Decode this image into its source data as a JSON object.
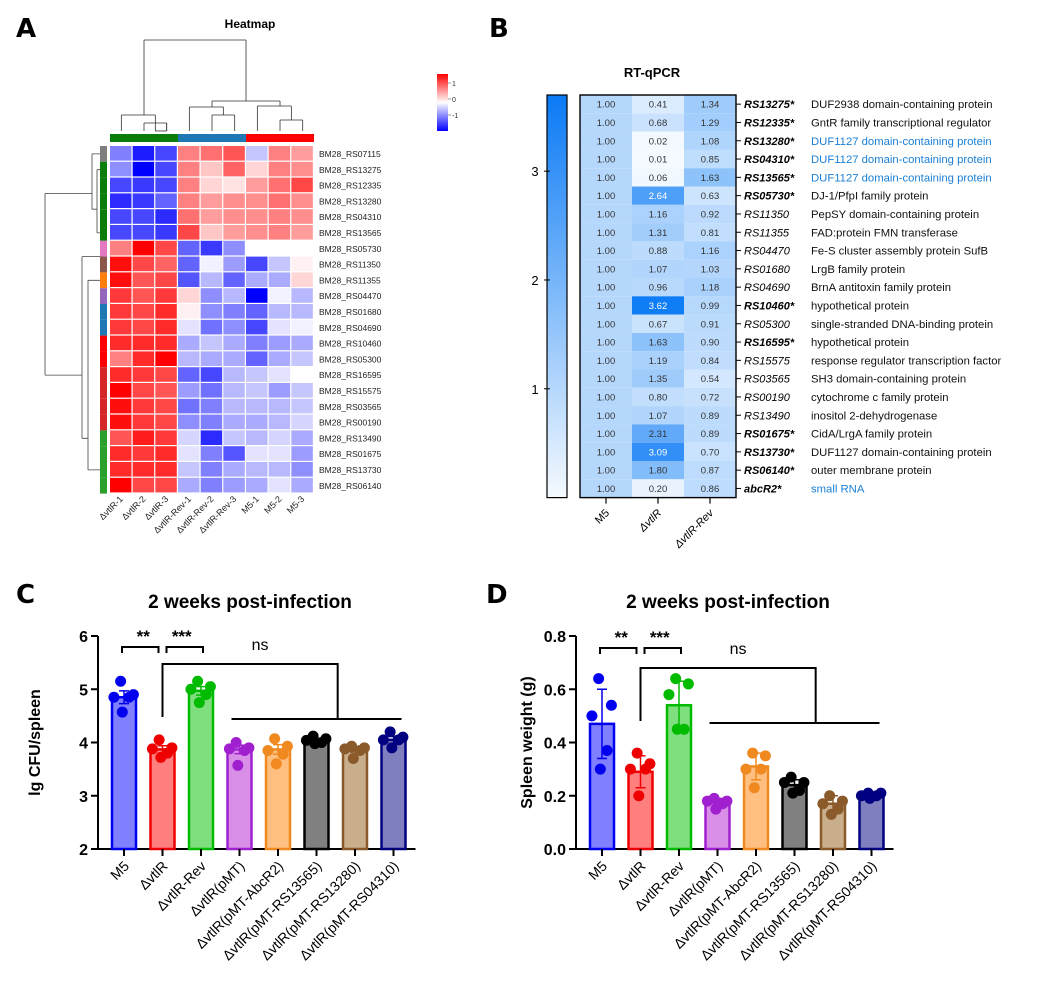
{
  "panels": {
    "a": "A",
    "b": "B",
    "c": "C",
    "d": "D"
  },
  "chart_data": [
    {
      "panel": "A",
      "type": "heatmap",
      "title": "Heatmap",
      "columns": [
        "ΔvtlR-1",
        "ΔvtlR-2",
        "ΔvtlR-3",
        "ΔvtlR-Rev-1",
        "ΔvtlR-Rev-2",
        "ΔvtlR-Rev-3",
        "M5-1",
        "M5-2",
        "M5-3"
      ],
      "column_groups": [
        {
          "name": "ΔvtlR",
          "color": "#0b7d0b",
          "count": 3
        },
        {
          "name": "ΔvtlR-Rev",
          "color": "#1f77b4",
          "count": 3
        },
        {
          "name": "M5",
          "color": "#ff0000",
          "count": 3
        }
      ],
      "rows": [
        "BM28_RS07115",
        "BM28_RS13275",
        "BM28_RS12335",
        "BM28_RS13280",
        "BM28_RS04310",
        "BM28_RS13565",
        "BM28_RS05730",
        "BM28_RS11350",
        "BM28_RS11355",
        "BM28_RS04470",
        "BM28_RS01680",
        "BM28_RS04690",
        "BM28_RS10460",
        "BM28_RS05300",
        "BM28_RS16595",
        "BM28_RS15575",
        "BM28_RS03565",
        "BM28_RS00190",
        "BM28_RS13490",
        "BM28_RS01675",
        "BM28_RS13730",
        "BM28_RS06140"
      ],
      "row_cluster_colors": [
        "#7f7f7f",
        "#0b7d0b",
        "#0b7d0b",
        "#0b7d0b",
        "#0b7d0b",
        "#0b7d0b",
        "#e377c2",
        "#8c564b",
        "#ff7f0e",
        "#9467bd",
        "#1f77b4",
        "#1f77b4",
        "#ff0000",
        "#ff0000",
        "#d62728",
        "#d62728",
        "#d62728",
        "#d62728",
        "#2ca02c",
        "#2ca02c",
        "#2ca02c",
        "#2ca02c"
      ],
      "values": [
        [
          -0.9,
          -1.6,
          -1.3,
          0.9,
          1.0,
          1.2,
          -0.4,
          0.9,
          0.7
        ],
        [
          -0.8,
          -1.8,
          -1.3,
          0.9,
          0.4,
          1.1,
          0.3,
          0.9,
          0.8
        ],
        [
          -1.3,
          -1.4,
          -1.3,
          0.9,
          0.3,
          0.2,
          0.7,
          1.0,
          1.3
        ],
        [
          -1.5,
          -1.4,
          -1.1,
          0.9,
          0.7,
          0.8,
          0.8,
          1.0,
          0.8
        ],
        [
          -1.3,
          -1.3,
          -1.5,
          1.0,
          0.7,
          0.8,
          0.8,
          0.9,
          0.8
        ],
        [
          -1.3,
          -1.3,
          -1.4,
          1.3,
          0.4,
          0.7,
          0.8,
          0.9,
          0.7
        ],
        [
          0.9,
          1.8,
          1.3,
          -1.1,
          -1.4,
          -0.8,
          0.0,
          0.0,
          0.0
        ],
        [
          1.7,
          1.3,
          1.1,
          -1.1,
          -0.1,
          -0.7,
          -1.3,
          -0.4,
          0.1
        ],
        [
          1.7,
          1.2,
          1.3,
          -1.2,
          -0.5,
          -1.1,
          -0.6,
          -0.6,
          0.3
        ],
        [
          1.4,
          1.2,
          1.4,
          0.3,
          -0.8,
          -0.5,
          -1.8,
          -0.1,
          -0.5
        ],
        [
          1.4,
          1.3,
          1.5,
          0.1,
          -0.8,
          -0.9,
          -1.1,
          -0.5,
          -0.5
        ],
        [
          1.4,
          1.3,
          1.5,
          -0.2,
          -1.0,
          -0.8,
          -1.3,
          -0.2,
          -0.1
        ],
        [
          1.5,
          1.5,
          1.5,
          -0.6,
          -0.4,
          -0.6,
          -0.9,
          -0.7,
          -0.6
        ],
        [
          0.9,
          1.5,
          1.8,
          -0.5,
          -0.6,
          -0.6,
          -1.1,
          -0.6,
          -0.4
        ],
        [
          1.5,
          1.4,
          1.3,
          -1.1,
          -1.3,
          -0.5,
          -0.4,
          -0.2,
          0.0
        ],
        [
          1.8,
          1.3,
          1.2,
          -0.7,
          -1.0,
          -0.5,
          -0.4,
          -0.7,
          -0.4
        ],
        [
          1.7,
          1.4,
          1.3,
          -1.0,
          -0.9,
          -0.5,
          -0.5,
          -0.5,
          -0.4
        ],
        [
          1.7,
          1.4,
          1.3,
          -0.8,
          -0.9,
          -0.6,
          -0.6,
          -0.5,
          -0.3
        ],
        [
          1.2,
          1.6,
          1.4,
          -0.3,
          -1.5,
          -0.4,
          -0.5,
          -0.3,
          -0.6
        ],
        [
          1.5,
          1.4,
          1.5,
          -0.2,
          -0.9,
          -1.2,
          -0.2,
          -0.2,
          -0.7
        ],
        [
          1.5,
          1.5,
          1.5,
          -0.4,
          -0.9,
          -0.6,
          -0.5,
          -0.5,
          -0.8
        ],
        [
          1.8,
          1.3,
          1.3,
          -0.6,
          -0.9,
          -0.7,
          -0.6,
          -0.2,
          -0.6
        ]
      ],
      "color_scale": {
        "min": -1.8,
        "max": 1.8,
        "low": "#0000ff",
        "mid": "#ffffff",
        "high": "#ff0000",
        "ticks": [
          "1",
          "0",
          "-1"
        ]
      }
    },
    {
      "panel": "B",
      "type": "heatmap",
      "title": "RT-qPCR",
      "columns": [
        "M5",
        "ΔvtlR",
        "ΔvtlR-Rev"
      ],
      "rows": [
        {
          "gene": "RS13275*",
          "bold": true,
          "desc": "DUF2938 domain-containing protein",
          "highlight": false,
          "values": [
            "1.00",
            "0.41",
            "1.34"
          ]
        },
        {
          "gene": "RS12335*",
          "bold": true,
          "desc": "GntR family transcriptional regulator",
          "highlight": false,
          "values": [
            "1.00",
            "0.68",
            "1.29"
          ]
        },
        {
          "gene": "RS13280*",
          "bold": true,
          "desc": "DUF1127 domain-containing protein",
          "highlight": true,
          "values": [
            "1.00",
            "0.02",
            "1.08"
          ]
        },
        {
          "gene": "RS04310*",
          "bold": true,
          "desc": "DUF1127 domain-containing protein",
          "highlight": true,
          "values": [
            "1.00",
            "0.01",
            "0.85"
          ]
        },
        {
          "gene": "RS13565*",
          "bold": true,
          "desc": "DUF1127 domain-containing protein",
          "highlight": true,
          "values": [
            "1.00",
            "0.06",
            "1.63"
          ]
        },
        {
          "gene": "RS05730*",
          "bold": true,
          "desc": "DJ-1/PfpI family protein",
          "highlight": false,
          "values": [
            "1.00",
            "2.64",
            "0.63"
          ]
        },
        {
          "gene": "RS11350",
          "bold": false,
          "desc": "PepSY domain-containing protein",
          "highlight": false,
          "values": [
            "1.00",
            "1.16",
            "0.92"
          ]
        },
        {
          "gene": "RS11355",
          "bold": false,
          "desc": "FAD:protein FMN transferase",
          "highlight": false,
          "values": [
            "1.00",
            "1.31",
            "0.81"
          ]
        },
        {
          "gene": "RS04470",
          "bold": false,
          "desc": "Fe-S cluster assembly protein SufB",
          "highlight": false,
          "values": [
            "1.00",
            "0.88",
            "1.16"
          ]
        },
        {
          "gene": "RS01680",
          "bold": false,
          "desc": "LrgB family protein",
          "highlight": false,
          "values": [
            "1.00",
            "1.07",
            "1.03"
          ]
        },
        {
          "gene": "RS04690",
          "bold": false,
          "desc": "BrnA antitoxin family protein",
          "highlight": false,
          "values": [
            "1.00",
            "0.96",
            "1.18"
          ]
        },
        {
          "gene": "RS10460*",
          "bold": true,
          "desc": "hypothetical protein",
          "highlight": false,
          "values": [
            "1.00",
            "3.62",
            "0.99"
          ]
        },
        {
          "gene": "RS05300",
          "bold": false,
          "desc": "single-stranded DNA-binding protein",
          "highlight": false,
          "values": [
            "1.00",
            "0.67",
            "0.91"
          ]
        },
        {
          "gene": "RS16595*",
          "bold": true,
          "desc": "hypothetical protein",
          "highlight": false,
          "values": [
            "1.00",
            "1.63",
            "0.90"
          ]
        },
        {
          "gene": "RS15575",
          "bold": false,
          "desc": "response regulator transcription factor",
          "highlight": false,
          "values": [
            "1.00",
            "1.19",
            "0.84"
          ]
        },
        {
          "gene": "RS03565",
          "bold": false,
          "desc": "SH3 domain-containing protein",
          "highlight": false,
          "values": [
            "1.00",
            "1.35",
            "0.54"
          ]
        },
        {
          "gene": "RS00190",
          "bold": false,
          "desc": "cytochrome c family protein",
          "highlight": false,
          "values": [
            "1.00",
            "0.80",
            "0.72"
          ]
        },
        {
          "gene": "RS13490",
          "bold": false,
          "desc": "inositol 2-dehydrogenase",
          "highlight": false,
          "values": [
            "1.00",
            "1.07",
            "0.89"
          ]
        },
        {
          "gene": "RS01675*",
          "bold": true,
          "desc": "CidA/LrgA family protein",
          "highlight": false,
          "values": [
            "1.00",
            "2.31",
            "0.89"
          ]
        },
        {
          "gene": "RS13730*",
          "bold": true,
          "desc": "DUF1127 domain-containing protein",
          "highlight": false,
          "values": [
            "1.00",
            "3.09",
            "0.70"
          ]
        },
        {
          "gene": "RS06140*",
          "bold": true,
          "desc": "outer membrane protein",
          "highlight": false,
          "values": [
            "1.00",
            "1.80",
            "0.87"
          ]
        },
        {
          "gene": "abcR2*",
          "bold": true,
          "desc": "small RNA",
          "highlight": true,
          "values": [
            "1.00",
            "0.20",
            "0.86"
          ]
        }
      ],
      "highlight_color": "#1a7fd4",
      "color_scale": {
        "min": 0,
        "max": 3.7,
        "low": "#f5faff",
        "high": "#0a7af5",
        "ticks": [
          "1",
          "2",
          "3"
        ]
      }
    },
    {
      "panel": "C",
      "type": "bar",
      "title": "2 weeks post-infection",
      "xlabel": "",
      "ylabel": "lg CFU/spleen",
      "ylim": [
        2,
        6
      ],
      "yticks": [
        "2",
        "3",
        "4",
        "5",
        "6"
      ],
      "categories": [
        "M5",
        "ΔvtlR",
        "ΔvtlR-Rev",
        "ΔvtlR(pMT)",
        "ΔvtlR(pMT-AbcR2)",
        "ΔvtlR(pMT-RS13565)",
        "ΔvtlR(pMT-RS13280)",
        "ΔvtlR(pMT-RS04310)"
      ],
      "fill_colors": [
        "#7f7fff",
        "#ff7f7f",
        "#7fdf7f",
        "#d98ee8",
        "#ffbf80",
        "#808080",
        "#c8ae8a",
        "#7f7fbf"
      ],
      "edge_colors": [
        "#0000ee",
        "#ee0000",
        "#00bb00",
        "#a020d0",
        "#f08a20",
        "#000000",
        "#8b5a2b",
        "#000080"
      ],
      "values": [
        4.85,
        3.87,
        4.97,
        3.87,
        3.87,
        4.03,
        3.87,
        4.05
      ],
      "errors": [
        0.12,
        0.07,
        0.08,
        0.08,
        0.09,
        0.03,
        0.05,
        0.07
      ],
      "points": [
        [
          5.15,
          4.9,
          4.85,
          4.85,
          4.57
        ],
        [
          4.05,
          3.9,
          3.88,
          3.8,
          3.72
        ],
        [
          5.15,
          5.05,
          5.0,
          4.9,
          4.75
        ],
        [
          4.0,
          3.9,
          3.88,
          3.85,
          3.57
        ],
        [
          4.07,
          3.93,
          3.85,
          3.78,
          3.6
        ],
        [
          4.12,
          4.07,
          4.04,
          4.0,
          3.98
        ],
        [
          3.93,
          3.9,
          3.88,
          3.85,
          3.7
        ],
        [
          4.2,
          4.1,
          4.05,
          4.05,
          3.9
        ]
      ],
      "annotations": [
        {
          "text": "**",
          "from": 0,
          "to": 1
        },
        {
          "text": "***",
          "from": 1,
          "to": 2
        },
        {
          "text": "ns",
          "from": 1,
          "to_group": [
            3,
            7
          ]
        }
      ]
    },
    {
      "panel": "D",
      "type": "bar",
      "title": "2 weeks post-infection",
      "xlabel": "",
      "ylabel": "Spleen weight (g)",
      "ylim": [
        0,
        0.8
      ],
      "yticks": [
        "0.0",
        "0.2",
        "0.4",
        "0.6",
        "0.8"
      ],
      "categories": [
        "M5",
        "ΔvtlR",
        "ΔvtlR-Rev",
        "ΔvtlR(pMT)",
        "ΔvtlR(pMT-AbcR2)",
        "ΔvtlR(pMT-RS13565)",
        "ΔvtlR(pMT-RS13280)",
        "ΔvtlR(pMT-RS04310)"
      ],
      "fill_colors": [
        "#7f7fff",
        "#ff7f7f",
        "#7fdf7f",
        "#d98ee8",
        "#ffbf80",
        "#808080",
        "#c8ae8a",
        "#7f7fbf"
      ],
      "edge_colors": [
        "#0000ee",
        "#ee0000",
        "#00bb00",
        "#a020d0",
        "#f08a20",
        "#000000",
        "#8b5a2b",
        "#000080"
      ],
      "values": [
        0.47,
        0.29,
        0.54,
        0.18,
        0.31,
        0.24,
        0.17,
        0.2
      ],
      "errors": [
        0.13,
        0.06,
        0.09,
        0.01,
        0.05,
        0.02,
        0.03,
        0.01
      ],
      "points": [
        [
          0.64,
          0.54,
          0.5,
          0.37,
          0.3
        ],
        [
          0.36,
          0.32,
          0.3,
          0.3,
          0.2
        ],
        [
          0.64,
          0.62,
          0.58,
          0.45,
          0.45
        ],
        [
          0.19,
          0.18,
          0.18,
          0.17,
          0.15
        ],
        [
          0.36,
          0.35,
          0.3,
          0.3,
          0.23
        ],
        [
          0.27,
          0.25,
          0.25,
          0.22,
          0.21
        ],
        [
          0.2,
          0.18,
          0.17,
          0.15,
          0.13
        ],
        [
          0.21,
          0.21,
          0.2,
          0.2,
          0.19
        ]
      ],
      "annotations": [
        {
          "text": "**",
          "from": 0,
          "to": 1
        },
        {
          "text": "***",
          "from": 1,
          "to": 2
        },
        {
          "text": "ns",
          "from": 1,
          "to_group": [
            3,
            7
          ]
        }
      ]
    }
  ]
}
